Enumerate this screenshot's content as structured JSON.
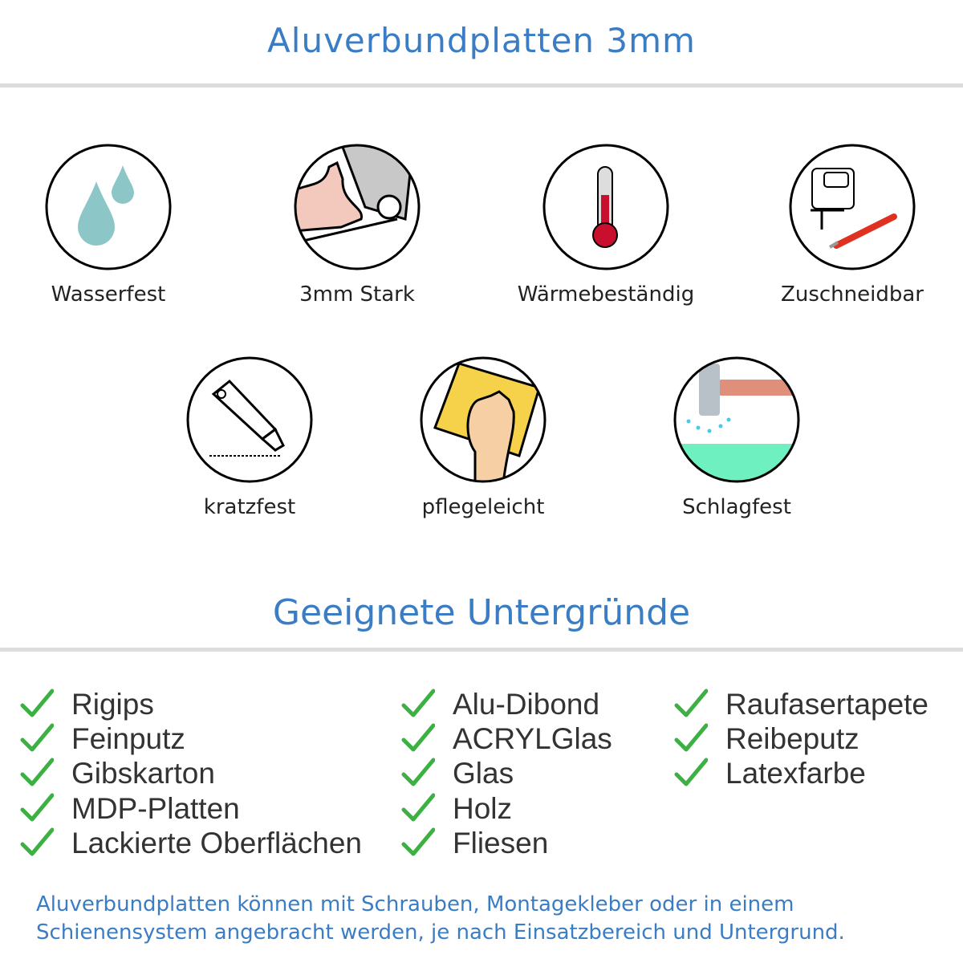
{
  "header": {
    "title": "Aluverbundplatten 3mm"
  },
  "features": [
    {
      "label": "Wasserfest",
      "icon": "water-drops-icon"
    },
    {
      "label": "3mm Stark",
      "icon": "strong-arm-icon"
    },
    {
      "label": "Wärmebeständig",
      "icon": "thermometer-icon"
    },
    {
      "label": "Zuschneidbar",
      "icon": "jigsaw-cutter-icon"
    },
    {
      "label": "kratzfest",
      "icon": "box-cutter-icon"
    },
    {
      "label": "pflegeleicht",
      "icon": "hand-sponge-icon"
    },
    {
      "label": "Schlagfest",
      "icon": "hammer-icon"
    }
  ],
  "surfaces": {
    "title": "Geeignete Untergründe",
    "columns": [
      [
        "Rigips",
        "Feinputz",
        "Gibskarton",
        "MDP-Platten",
        "Lackierte Oberflächen"
      ],
      [
        "Alu-Dibond",
        "ACRYLGlas",
        "Glas",
        "Holz",
        "Fliesen"
      ],
      [
        "Raufasertapete",
        "Reibeputz",
        "Latexfarbe"
      ]
    ],
    "check_color": "#3cb043"
  },
  "note": {
    "lines": [
      "Aluverbundplatten können mit Schrauben, Montagekleber oder in einem",
      "Schienensystem angebracht werden, je nach Einsatzbereich und Untergrund."
    ]
  },
  "colors": {
    "accent": "#3a7dc4",
    "text": "#333333"
  }
}
